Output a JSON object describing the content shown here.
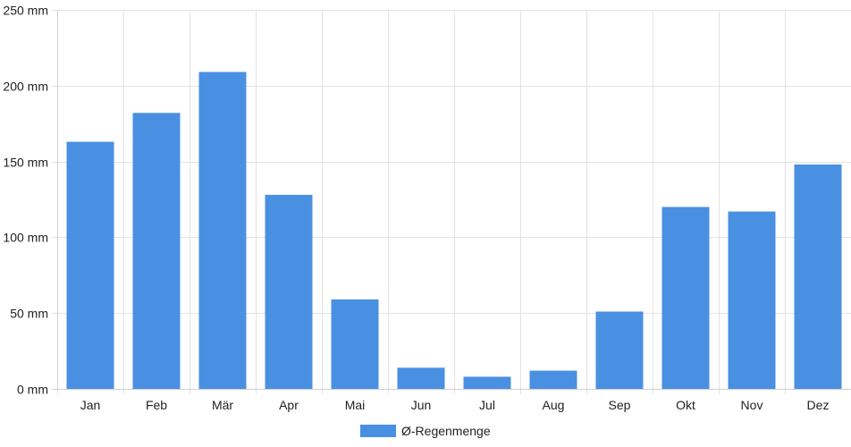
{
  "chart_data": {
    "type": "bar",
    "categories": [
      "Jan",
      "Feb",
      "Mär",
      "Apr",
      "Mai",
      "Jun",
      "Jul",
      "Aug",
      "Sep",
      "Okt",
      "Nov",
      "Dez"
    ],
    "series": [
      {
        "name": "Ø-Regenmenge",
        "values": [
          163,
          182,
          209,
          128,
          59,
          14,
          8,
          12,
          51,
          120,
          117,
          148
        ],
        "color": "#4a90e2"
      }
    ],
    "ylim": [
      0,
      250
    ],
    "yticks": [
      0,
      50,
      100,
      150,
      200,
      250
    ],
    "y_tick_suffix": " mm",
    "grid": true,
    "legend_position": "bottom-center",
    "title": "",
    "xlabel": "",
    "ylabel": ""
  }
}
